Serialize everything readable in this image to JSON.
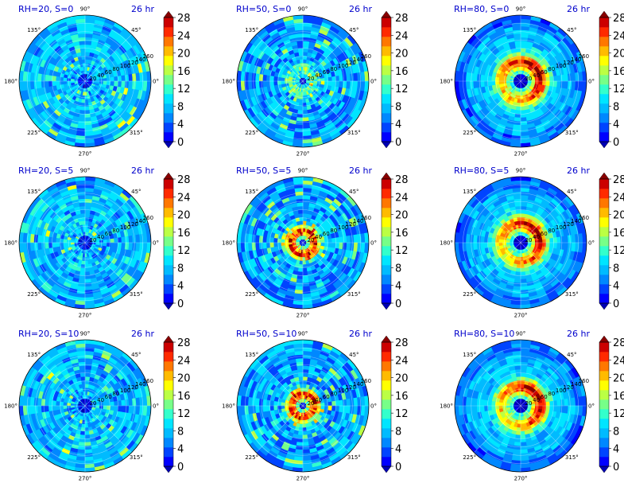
{
  "time_label": "26 hr",
  "polar": {
    "angle_labels": [
      "90°",
      "45°",
      "0°",
      "315°",
      "270°",
      "225°",
      "180°",
      "135°"
    ],
    "radial_labels": [
      "20",
      "40",
      "60",
      "80",
      "100",
      "120",
      "140",
      "160"
    ]
  },
  "colorbar": {
    "tick_labels": [
      "0",
      "4",
      "8",
      "12",
      "16",
      "20",
      "24",
      "28"
    ],
    "levels": [
      0,
      2,
      4,
      6,
      8,
      10,
      12,
      14,
      16,
      18,
      20,
      22,
      24,
      26,
      28
    ],
    "colors": [
      "#0000b3",
      "#0000ff",
      "#0044ff",
      "#0088ff",
      "#00bbff",
      "#00e5ff",
      "#33ffcc",
      "#77ff88",
      "#bbff44",
      "#ffff00",
      "#ffbb00",
      "#ff7700",
      "#ff2a00",
      "#cc0000",
      "#880000"
    ],
    "extend": "both"
  },
  "chart_data": [
    {
      "type": "heatmap",
      "title": "RH=20, S=0",
      "rh": 20,
      "s": 0,
      "time": "26 hr"
    },
    {
      "type": "heatmap",
      "title": "RH=50, S=0",
      "rh": 50,
      "s": 0,
      "time": "26 hr"
    },
    {
      "type": "heatmap",
      "title": "RH=80, S=0",
      "rh": 80,
      "s": 0,
      "time": "26 hr"
    },
    {
      "type": "heatmap",
      "title": "RH=20, S=5",
      "rh": 20,
      "s": 5,
      "time": "26 hr"
    },
    {
      "type": "heatmap",
      "title": "RH=50, S=5",
      "rh": 50,
      "s": 5,
      "time": "26 hr"
    },
    {
      "type": "heatmap",
      "title": "RH=80, S=5",
      "rh": 80,
      "s": 5,
      "time": "26 hr"
    },
    {
      "type": "heatmap",
      "title": "RH=20, S=10",
      "rh": 20,
      "s": 10,
      "time": "26 hr"
    },
    {
      "type": "heatmap",
      "title": "RH=50, S=10",
      "rh": 50,
      "s": 10,
      "time": "26 hr"
    },
    {
      "type": "heatmap",
      "title": "RH=80, S=10",
      "rh": 80,
      "s": 10,
      "time": "26 hr"
    }
  ],
  "colors": {
    "title": "#0000cc",
    "label": "#000000",
    "grid": "#ffffff"
  }
}
